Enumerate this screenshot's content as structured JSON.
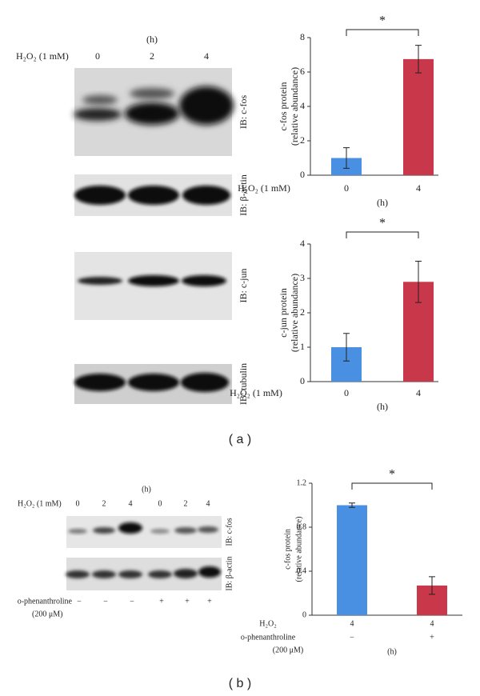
{
  "panel_a": {
    "label": "( a )",
    "h2o2_label": "H₂O₂ (1 mM)",
    "time_unit": "(h)",
    "lanes": [
      "0",
      "2",
      "4"
    ],
    "blots": [
      "IB: c-fos",
      "IB: β-actin",
      "IB: c-jun",
      "IB: tubulin"
    ]
  },
  "panel_b": {
    "label": "( b )",
    "h2o2_label": "H₂O₂ (1 mM)",
    "time_unit": "(h)",
    "lanes": [
      "0",
      "2",
      "4",
      "0",
      "2",
      "4"
    ],
    "blots": [
      "IB: c-fos",
      "IB: β-actin"
    ],
    "inhibitor_label": "o-phenanthroline",
    "inhibitor_dose": "(200 μM)",
    "inhibitor": [
      "−",
      "−",
      "−",
      "+",
      "+",
      "+"
    ]
  },
  "chart_data": [
    {
      "type": "bar",
      "ylabel": [
        "c-fos protein",
        "(relative abundance)"
      ],
      "category_rows": [
        {
          "label": "H₂O₂ (1 mM)",
          "categories": [
            "0",
            "4"
          ]
        }
      ],
      "x_unit": "(h)",
      "values": [
        1.0,
        6.75
      ],
      "errors": [
        0.6,
        0.8
      ],
      "colors": [
        "#4a90e2",
        "#c8374a"
      ],
      "ylim": [
        0,
        8
      ],
      "yticks": [
        0,
        2,
        4,
        6,
        8
      ],
      "significance": "*"
    },
    {
      "type": "bar",
      "ylabel": [
        "c-jun protein",
        "(relative abundance)"
      ],
      "category_rows": [
        {
          "label": "H₂O₂ (1 mM)",
          "categories": [
            "0",
            "4"
          ]
        }
      ],
      "x_unit": "(h)",
      "values": [
        1.0,
        2.9
      ],
      "errors": [
        0.4,
        0.6
      ],
      "colors": [
        "#4a90e2",
        "#c8374a"
      ],
      "ylim": [
        0,
        4
      ],
      "yticks": [
        0,
        1,
        2,
        3,
        4
      ],
      "significance": "*"
    },
    {
      "type": "bar",
      "ylabel": [
        "c-fos protein",
        "(relative abundance)"
      ],
      "category_rows": [
        {
          "label": "H₂O₂",
          "categories": [
            "4",
            "4"
          ]
        },
        {
          "label": "o-phenanthroline",
          "categories": [
            "−",
            "+"
          ]
        }
      ],
      "row_note": "(200 μM)",
      "x_unit": "(h)",
      "values": [
        1.0,
        0.27
      ],
      "errors": [
        0.02,
        0.08
      ],
      "colors": [
        "#4a90e2",
        "#c8374a"
      ],
      "ylim": [
        0,
        1.2
      ],
      "yticks": [
        0,
        0.4,
        0.8,
        1.2
      ],
      "significance": "*"
    }
  ]
}
